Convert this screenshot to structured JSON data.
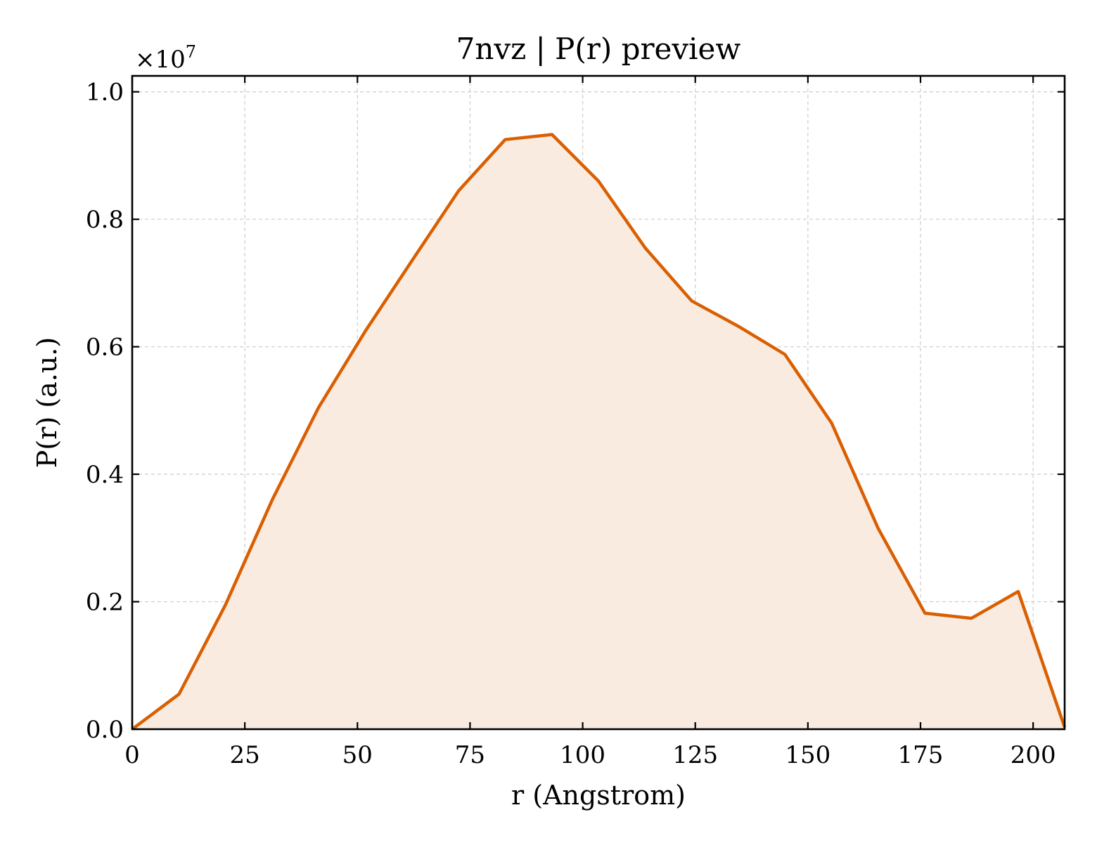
{
  "chart_data": {
    "type": "area",
    "title": "7nvz | P(r) preview",
    "xlabel": "r (Angstrom)",
    "ylabel": "P(r) (a.u.)",
    "y_offset_label": "×10^7",
    "y_offset_base": "×10",
    "y_offset_exp": "7",
    "xlim": [
      0,
      207
    ],
    "ylim": [
      0,
      1.025
    ],
    "y_scale": 10000000,
    "x_ticks": [
      "0",
      "25",
      "50",
      "75",
      "100",
      "125",
      "150",
      "175",
      "200"
    ],
    "y_ticks": [
      "0.0",
      "0.2",
      "0.4",
      "0.6",
      "0.8",
      "1.0"
    ],
    "grid": true,
    "series": [
      {
        "color": "#d95f02",
        "fill_color": "#f9ebe0",
        "x": [
          0,
          10.4,
          20.7,
          31.1,
          41.4,
          51.8,
          62.1,
          72.5,
          82.8,
          93.2,
          103.5,
          113.9,
          124.2,
          134.6,
          144.9,
          155.3,
          165.6,
          176.0,
          186.3,
          196.7,
          207.0
        ],
        "y": [
          0.0,
          0.055,
          0.195,
          0.36,
          0.505,
          0.625,
          0.735,
          0.845,
          0.925,
          0.933,
          0.86,
          0.755,
          0.672,
          0.632,
          0.588,
          0.48,
          0.315,
          0.182,
          0.174,
          0.216,
          0.003
        ]
      }
    ]
  }
}
